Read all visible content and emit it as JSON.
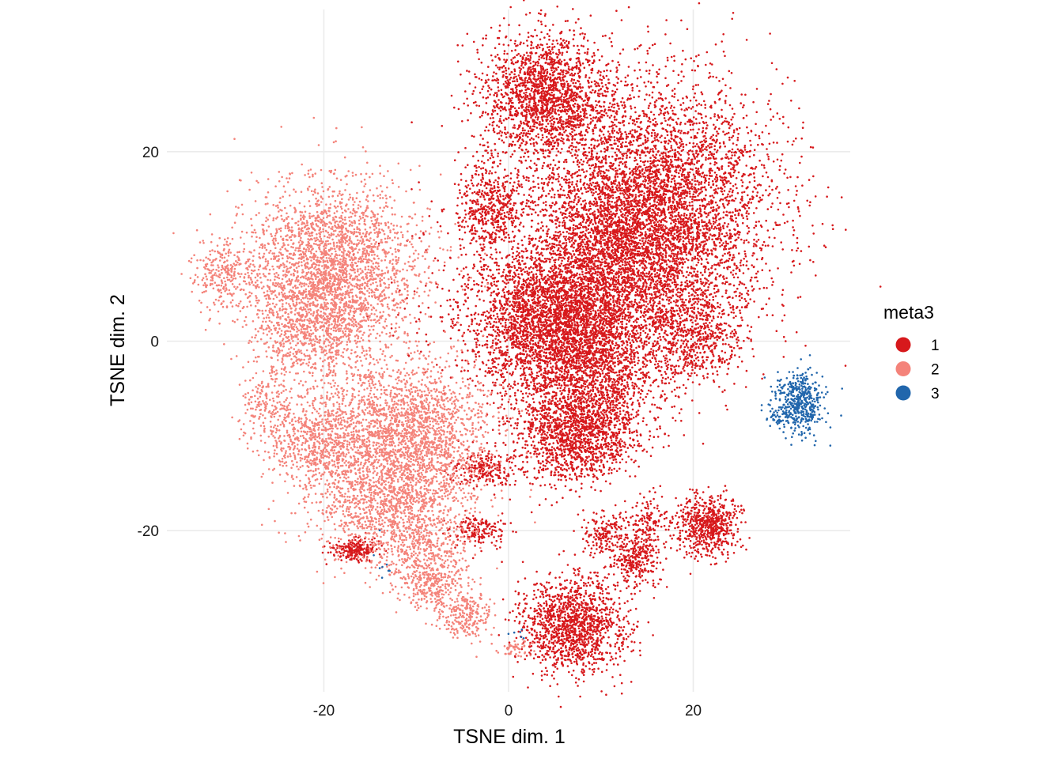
{
  "chart_data": {
    "type": "scatter",
    "title": "",
    "xlabel": "TSNE dim. 1",
    "ylabel": "TSNE dim. 2",
    "xlim": [
      -37,
      37
    ],
    "ylim": [
      -37,
      35
    ],
    "x_ticks": [
      -20,
      0,
      20
    ],
    "y_ticks": [
      -20,
      0,
      20
    ],
    "x_tick_labels": [
      "-20",
      "0",
      "20"
    ],
    "y_tick_labels": [
      "-20",
      "0",
      "20"
    ],
    "grid": true,
    "legend": {
      "title": "meta3",
      "position": "right",
      "entries": [
        "1",
        "2",
        "3"
      ]
    },
    "colors": {
      "1": "#d7191c",
      "2": "#f4837a",
      "3": "#2166ac"
    },
    "series": [
      {
        "name": "1",
        "color": "#d7191c",
        "clusters": [
          {
            "cx": 4.0,
            "cy": 26.0,
            "sx": 3.5,
            "sy": 3.3,
            "n": 1800
          },
          {
            "cx": 16.0,
            "cy": 14.5,
            "sx": 6.5,
            "sy": 6.5,
            "n": 4500
          },
          {
            "cx": 11.5,
            "cy": 8.0,
            "sx": 5.5,
            "sy": 5.5,
            "n": 2600
          },
          {
            "cx": 4.0,
            "cy": 2.0,
            "sx": 4.5,
            "sy": 4.0,
            "n": 2600
          },
          {
            "cx": 9.0,
            "cy": -3.0,
            "sx": 4.0,
            "sy": 4.0,
            "n": 1500
          },
          {
            "cx": 7.0,
            "cy": -10.0,
            "sx": 3.2,
            "sy": 2.6,
            "n": 1300
          },
          {
            "cx": -2.0,
            "cy": 14.0,
            "sx": 1.8,
            "sy": 2.5,
            "n": 500
          },
          {
            "cx": 20.5,
            "cy": 0.0,
            "sx": 2.5,
            "sy": 2.5,
            "n": 500
          },
          {
            "cx": 7.0,
            "cy": -30.0,
            "sx": 2.8,
            "sy": 2.5,
            "n": 1400
          },
          {
            "cx": 21.5,
            "cy": -19.5,
            "sx": 1.8,
            "sy": 1.6,
            "n": 650
          },
          {
            "cx": 14.0,
            "cy": -23.0,
            "sx": 1.3,
            "sy": 1.5,
            "n": 280
          },
          {
            "cx": 10.5,
            "cy": -20.5,
            "sx": 1.4,
            "sy": 1.2,
            "n": 180
          },
          {
            "cx": 15.0,
            "cy": -19.0,
            "sx": 0.9,
            "sy": 1.1,
            "n": 120
          },
          {
            "cx": -16.5,
            "cy": -22.0,
            "sx": 1.2,
            "sy": 0.6,
            "n": 220
          },
          {
            "cx": -2.5,
            "cy": -13.5,
            "sx": 1.8,
            "sy": 1.0,
            "n": 220
          },
          {
            "cx": -3.0,
            "cy": -20.0,
            "sx": 1.6,
            "sy": 0.9,
            "n": 160
          },
          {
            "cx": -8.0,
            "cy": 5.0,
            "sx": 3.0,
            "sy": 5.0,
            "n": 60
          }
        ]
      },
      {
        "name": "2",
        "color": "#f4837a",
        "clusters": [
          {
            "cx": -19.0,
            "cy": 8.0,
            "sx": 4.5,
            "sy": 4.3,
            "n": 2500
          },
          {
            "cx": -21.0,
            "cy": 1.5,
            "sx": 3.5,
            "sy": 3.0,
            "n": 800
          },
          {
            "cx": -31.0,
            "cy": 7.0,
            "sx": 1.6,
            "sy": 2.0,
            "n": 260
          },
          {
            "cx": -26.0,
            "cy": -6.5,
            "sx": 1.5,
            "sy": 2.0,
            "n": 180
          },
          {
            "cx": -10.5,
            "cy": -9.5,
            "sx": 4.2,
            "sy": 3.8,
            "n": 1900
          },
          {
            "cx": -20.0,
            "cy": -10.5,
            "sx": 3.3,
            "sy": 2.6,
            "n": 800
          },
          {
            "cx": -13.0,
            "cy": -17.0,
            "sx": 4.5,
            "sy": 3.0,
            "n": 1200
          },
          {
            "cx": -9.0,
            "cy": -23.0,
            "sx": 2.6,
            "sy": 2.2,
            "n": 450
          },
          {
            "cx": -4.5,
            "cy": -29.0,
            "sx": 1.3,
            "sy": 1.3,
            "n": 220
          },
          {
            "cx": -8.0,
            "cy": -26.0,
            "sx": 1.5,
            "sy": 1.3,
            "n": 150
          },
          {
            "cx": 0.5,
            "cy": -32.5,
            "sx": 1.0,
            "sy": 0.4,
            "n": 50
          }
        ]
      },
      {
        "name": "3",
        "color": "#2166ac",
        "clusters": [
          {
            "cx": 31.5,
            "cy": -6.5,
            "sx": 1.3,
            "sy": 1.7,
            "n": 480
          },
          {
            "cx": 29.0,
            "cy": -8.0,
            "sx": 0.8,
            "sy": 0.5,
            "n": 30
          },
          {
            "cx": -13.5,
            "cy": -24.0,
            "sx": 0.8,
            "sy": 1.5,
            "n": 8
          },
          {
            "cx": 1.0,
            "cy": -31.0,
            "sx": 0.5,
            "sy": 0.5,
            "n": 6
          }
        ]
      }
    ]
  }
}
